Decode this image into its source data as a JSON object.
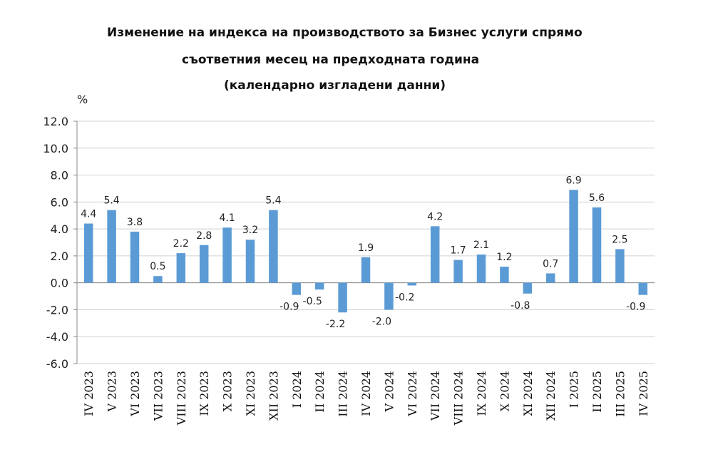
{
  "title_lines": [
    "Изменение на индекса на производството за Бизнес услуги спрямо",
    "съответния месец на предходната година",
    "(календарно изгладени данни)"
  ],
  "chart_data": {
    "type": "bar",
    "title": "Изменение на индекса на производството за Бизнес услуги спрямо съответния месец на предходната година (календарно изгладени данни)",
    "ylabel": "%",
    "xlabel": "",
    "ylim": [
      -6.0,
      12.0
    ],
    "ytick_step": 2.0,
    "ytick_labels": [
      "-6.0",
      "-4.0",
      "-2.0",
      "0.0",
      "2.0",
      "4.0",
      "6.0",
      "8.0",
      "10.0",
      "12.0"
    ],
    "grid": true,
    "bar_color": "#5b9bd5",
    "categories": [
      "IV 2023",
      "V 2023",
      "VI 2023",
      "VII 2023",
      "VIII 2023",
      "IX 2023",
      "X 2023",
      "XI 2023",
      "XII 2023",
      "I 2024",
      "II 2024",
      "III 2024",
      "IV 2024",
      "V 2024",
      "VI 2024",
      "VII 2024",
      "VIII 2024",
      "IX 2024",
      "X 2024",
      "XI 2024",
      "XII 2024",
      "I 2025",
      "II 2025",
      "III 2025",
      "IV 2025"
    ],
    "values": [
      4.4,
      5.4,
      3.8,
      0.5,
      2.2,
      2.8,
      4.1,
      3.2,
      5.4,
      -0.9,
      -0.5,
      -2.2,
      1.9,
      -2.0,
      -0.2,
      4.2,
      1.7,
      2.1,
      1.2,
      -0.8,
      0.7,
      6.9,
      5.6,
      2.5,
      -0.9
    ],
    "value_labels": [
      "4.4",
      "5.4",
      "3.8",
      "0.5",
      "2.2",
      "2.8",
      "4.1",
      "3.2",
      "5.4",
      "-0.9",
      "-0.5",
      "-2.2",
      "1.9",
      "-2.0",
      "-0.2",
      "4.2",
      "1.7",
      "2.1",
      "1.2",
      "-0.8",
      "0.7",
      "6.9",
      "5.6",
      "2.5",
      "-0.9"
    ]
  }
}
